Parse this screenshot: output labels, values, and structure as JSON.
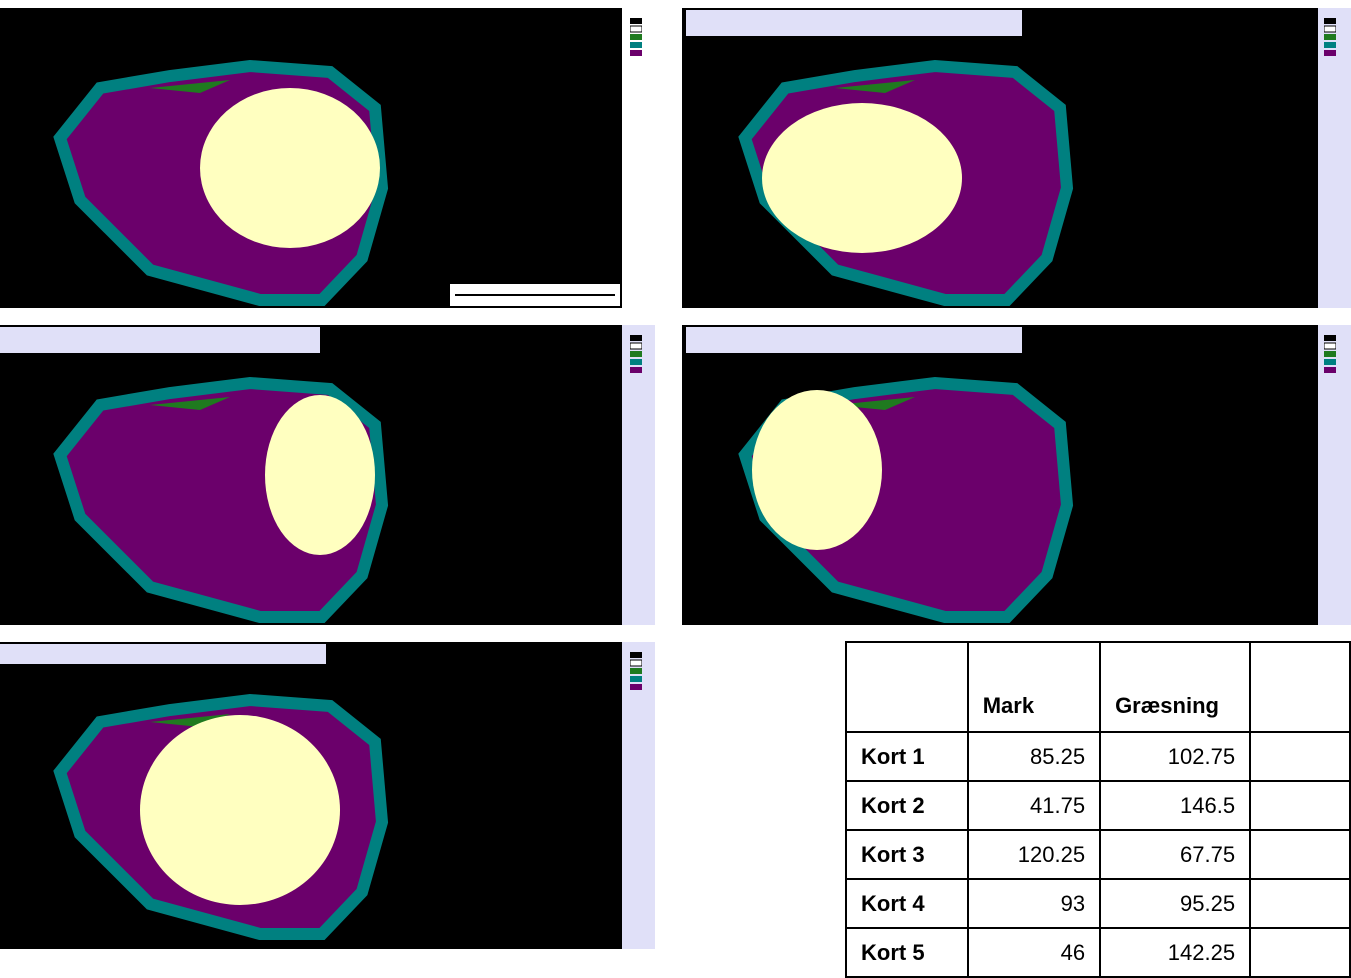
{
  "table": {
    "header": [
      "Mark",
      "Græsning"
    ],
    "rows": [
      {
        "label": "Kort 1",
        "values": [
          85.25,
          102.75
        ]
      },
      {
        "label": "Kort 2",
        "values": [
          41.75,
          146.5
        ]
      },
      {
        "label": "Kort 3",
        "values": [
          120.25,
          67.75
        ]
      },
      {
        "label": "Kort 4",
        "values": [
          93,
          95.25
        ]
      },
      {
        "label": "Kort 5",
        "values": [
          46,
          142.25
        ]
      }
    ]
  }
}
